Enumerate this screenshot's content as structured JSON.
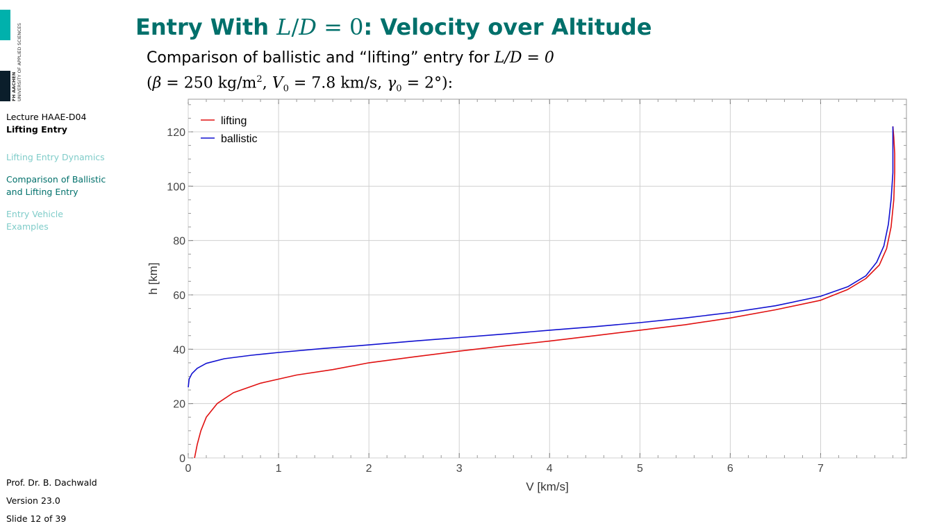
{
  "logo": {
    "line1": "FH AACHEN",
    "line2": "UNIVERSITY OF APPLIED SCIENCES",
    "colors": {
      "teal": "#00b1ac",
      "dark": "#0b1e2b"
    }
  },
  "sidebar": {
    "lecture": "Lecture HAAE-D04",
    "topic": "Lifting Entry",
    "items": [
      {
        "label": "Lifting Entry Dynamics",
        "state": "inactive"
      },
      {
        "label": "Comparison of Ballistic and Lifting Entry",
        "state": "active"
      },
      {
        "label": "Entry Vehicle Examples",
        "state": "inactive"
      }
    ],
    "footer": {
      "author": "Prof. Dr. B. Dachwald",
      "version": "Version 23.0",
      "slide": "Slide 12 of 39"
    }
  },
  "header": {
    "title_prefix": "Entry With ",
    "title_math_L": "L",
    "title_math_slash": "/",
    "title_math_D": "D",
    "title_math_eq": " = 0",
    "title_suffix": ": Velocity over Altitude",
    "accent_color": "#00706b"
  },
  "intro": {
    "line1_text": "Comparison of ballistic and “lifting” entry for ",
    "line1_math": "L/D = 0",
    "beta_sym": "β",
    "beta_val": " = 250 kg/m",
    "beta_exp": "2",
    "v_sym": "V",
    "v_sub": "0",
    "v_val": " = 7.8 km/s, ",
    "gamma_sym": "γ",
    "gamma_sub": "0",
    "gamma_val": " = 2°",
    "open": "(",
    "close": "):"
  },
  "chart_data": {
    "type": "line",
    "xlabel": "V [km/s]",
    "ylabel": "h [km]",
    "xlim": [
      0,
      7.95
    ],
    "ylim": [
      0,
      132
    ],
    "x_ticks": [
      0,
      1,
      2,
      3,
      4,
      5,
      6,
      7
    ],
    "y_ticks": [
      0,
      20,
      40,
      60,
      80,
      100,
      120
    ],
    "grid": true,
    "legend_position": "top-left",
    "series": [
      {
        "name": "lifting",
        "color": "#e01010",
        "points": [
          [
            0.07,
            0
          ],
          [
            0.1,
            5
          ],
          [
            0.14,
            10
          ],
          [
            0.2,
            15
          ],
          [
            0.32,
            20
          ],
          [
            0.5,
            24
          ],
          [
            0.8,
            27.5
          ],
          [
            1.2,
            30.5
          ],
          [
            1.6,
            32.5
          ],
          [
            2.0,
            35
          ],
          [
            2.5,
            37.2
          ],
          [
            3.0,
            39.3
          ],
          [
            3.5,
            41.2
          ],
          [
            4.0,
            43
          ],
          [
            4.5,
            45
          ],
          [
            5.0,
            47
          ],
          [
            5.5,
            49
          ],
          [
            6.0,
            51.5
          ],
          [
            6.5,
            54.5
          ],
          [
            7.0,
            58
          ],
          [
            7.3,
            62
          ],
          [
            7.5,
            66
          ],
          [
            7.65,
            71
          ],
          [
            7.73,
            77
          ],
          [
            7.78,
            85
          ],
          [
            7.81,
            95
          ],
          [
            7.82,
            105
          ],
          [
            7.82,
            112
          ],
          [
            7.81,
            118
          ],
          [
            7.8,
            122
          ]
        ]
      },
      {
        "name": "ballistic",
        "color": "#1010d0",
        "points": [
          [
            0.0,
            26
          ],
          [
            0.01,
            29
          ],
          [
            0.04,
            31
          ],
          [
            0.1,
            33
          ],
          [
            0.2,
            34.8
          ],
          [
            0.4,
            36.5
          ],
          [
            0.7,
            37.8
          ],
          [
            1.0,
            38.8
          ],
          [
            1.5,
            40.3
          ],
          [
            2.0,
            41.6
          ],
          [
            2.5,
            43
          ],
          [
            3.0,
            44.3
          ],
          [
            3.5,
            45.6
          ],
          [
            4.0,
            47
          ],
          [
            4.5,
            48.3
          ],
          [
            5.0,
            49.8
          ],
          [
            5.5,
            51.5
          ],
          [
            6.0,
            53.5
          ],
          [
            6.5,
            56
          ],
          [
            7.0,
            59.5
          ],
          [
            7.3,
            63
          ],
          [
            7.5,
            67
          ],
          [
            7.62,
            72
          ],
          [
            7.7,
            78
          ],
          [
            7.75,
            86
          ],
          [
            7.78,
            95
          ],
          [
            7.8,
            105
          ],
          [
            7.8,
            113
          ],
          [
            7.8,
            122
          ]
        ]
      }
    ]
  }
}
